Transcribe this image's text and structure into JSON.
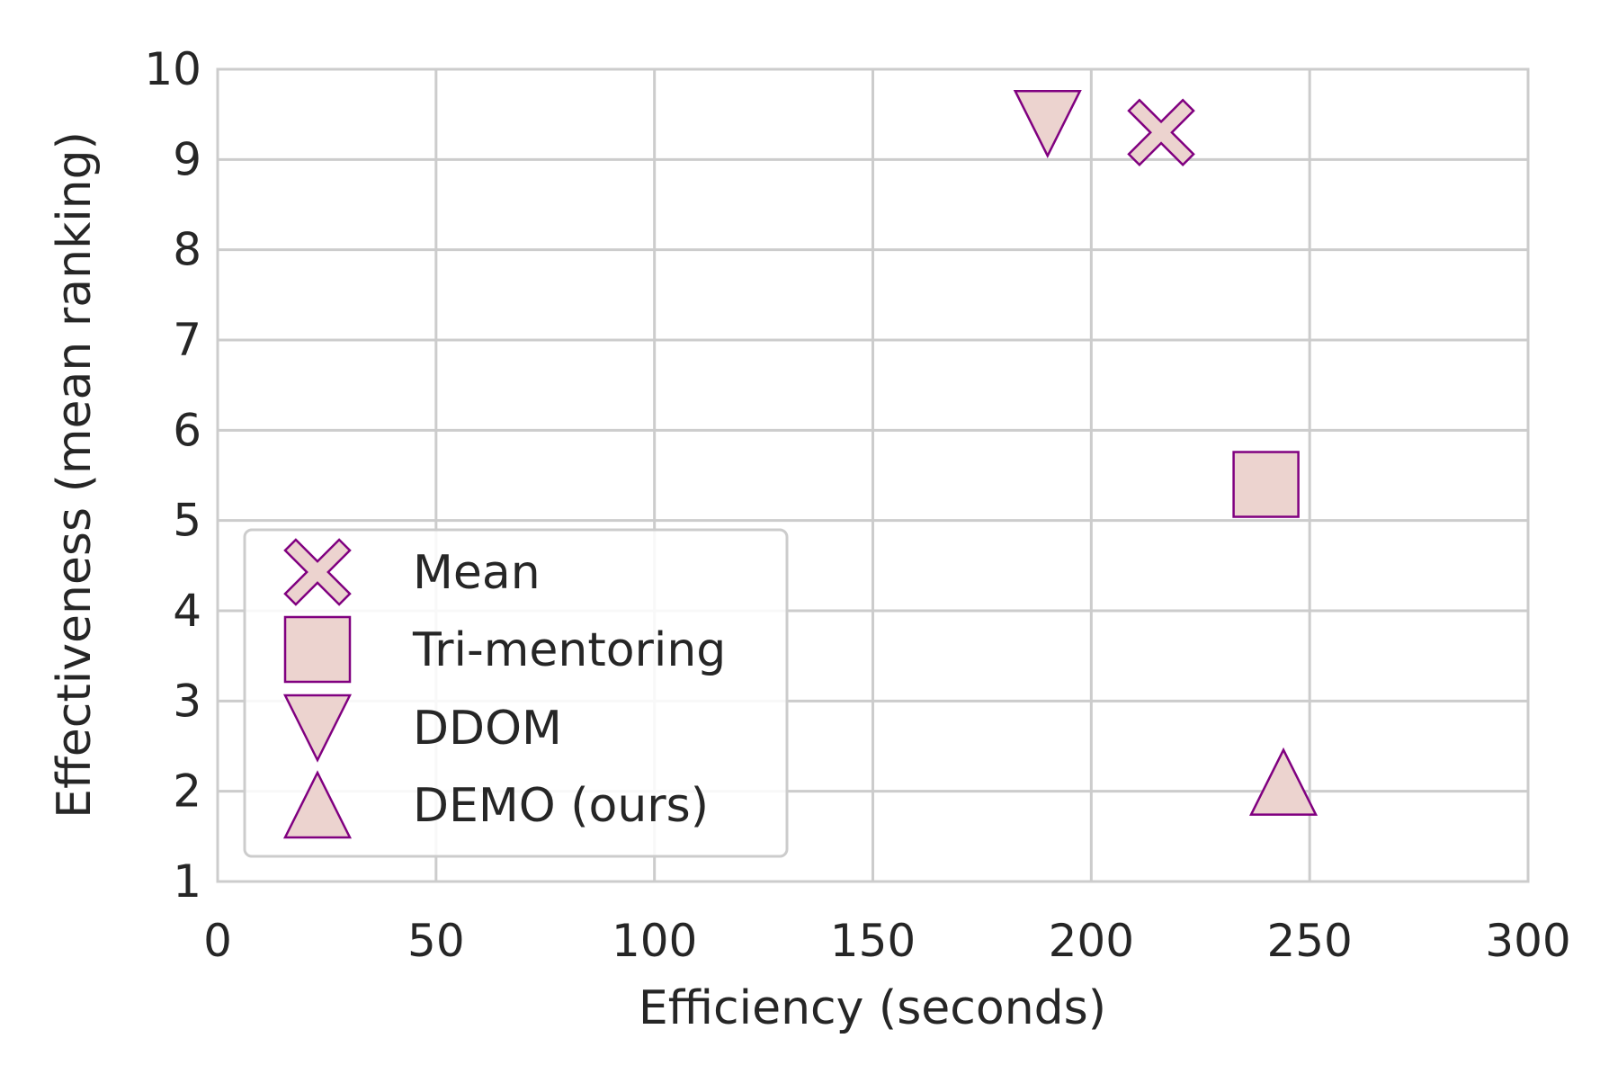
{
  "chart_data": {
    "type": "scatter",
    "title": "",
    "xlabel": "Efficiency (seconds)",
    "ylabel": "Effectiveness (mean ranking)",
    "xlim": [
      0,
      300
    ],
    "ylim": [
      1,
      10
    ],
    "xticks": [
      "0",
      "50",
      "100",
      "150",
      "200",
      "250",
      "300"
    ],
    "yticks": [
      "1",
      "2",
      "3",
      "4",
      "5",
      "6",
      "7",
      "8",
      "9",
      "10"
    ],
    "grid": true,
    "legend_position": "lower-left",
    "marker_fill": "#ecd3cf",
    "marker_edge": "#800080",
    "series": [
      {
        "name": "Mean",
        "marker": "x-icon",
        "x": 216,
        "y": 9.3
      },
      {
        "name": "Tri-mentoring",
        "marker": "square-icon",
        "x": 240,
        "y": 5.4
      },
      {
        "name": "DDOM",
        "marker": "triangle-down-icon",
        "x": 190,
        "y": 9.4
      },
      {
        "name": "DEMO (ours)",
        "marker": "triangle-up-icon",
        "x": 244,
        "y": 2.1
      }
    ]
  }
}
